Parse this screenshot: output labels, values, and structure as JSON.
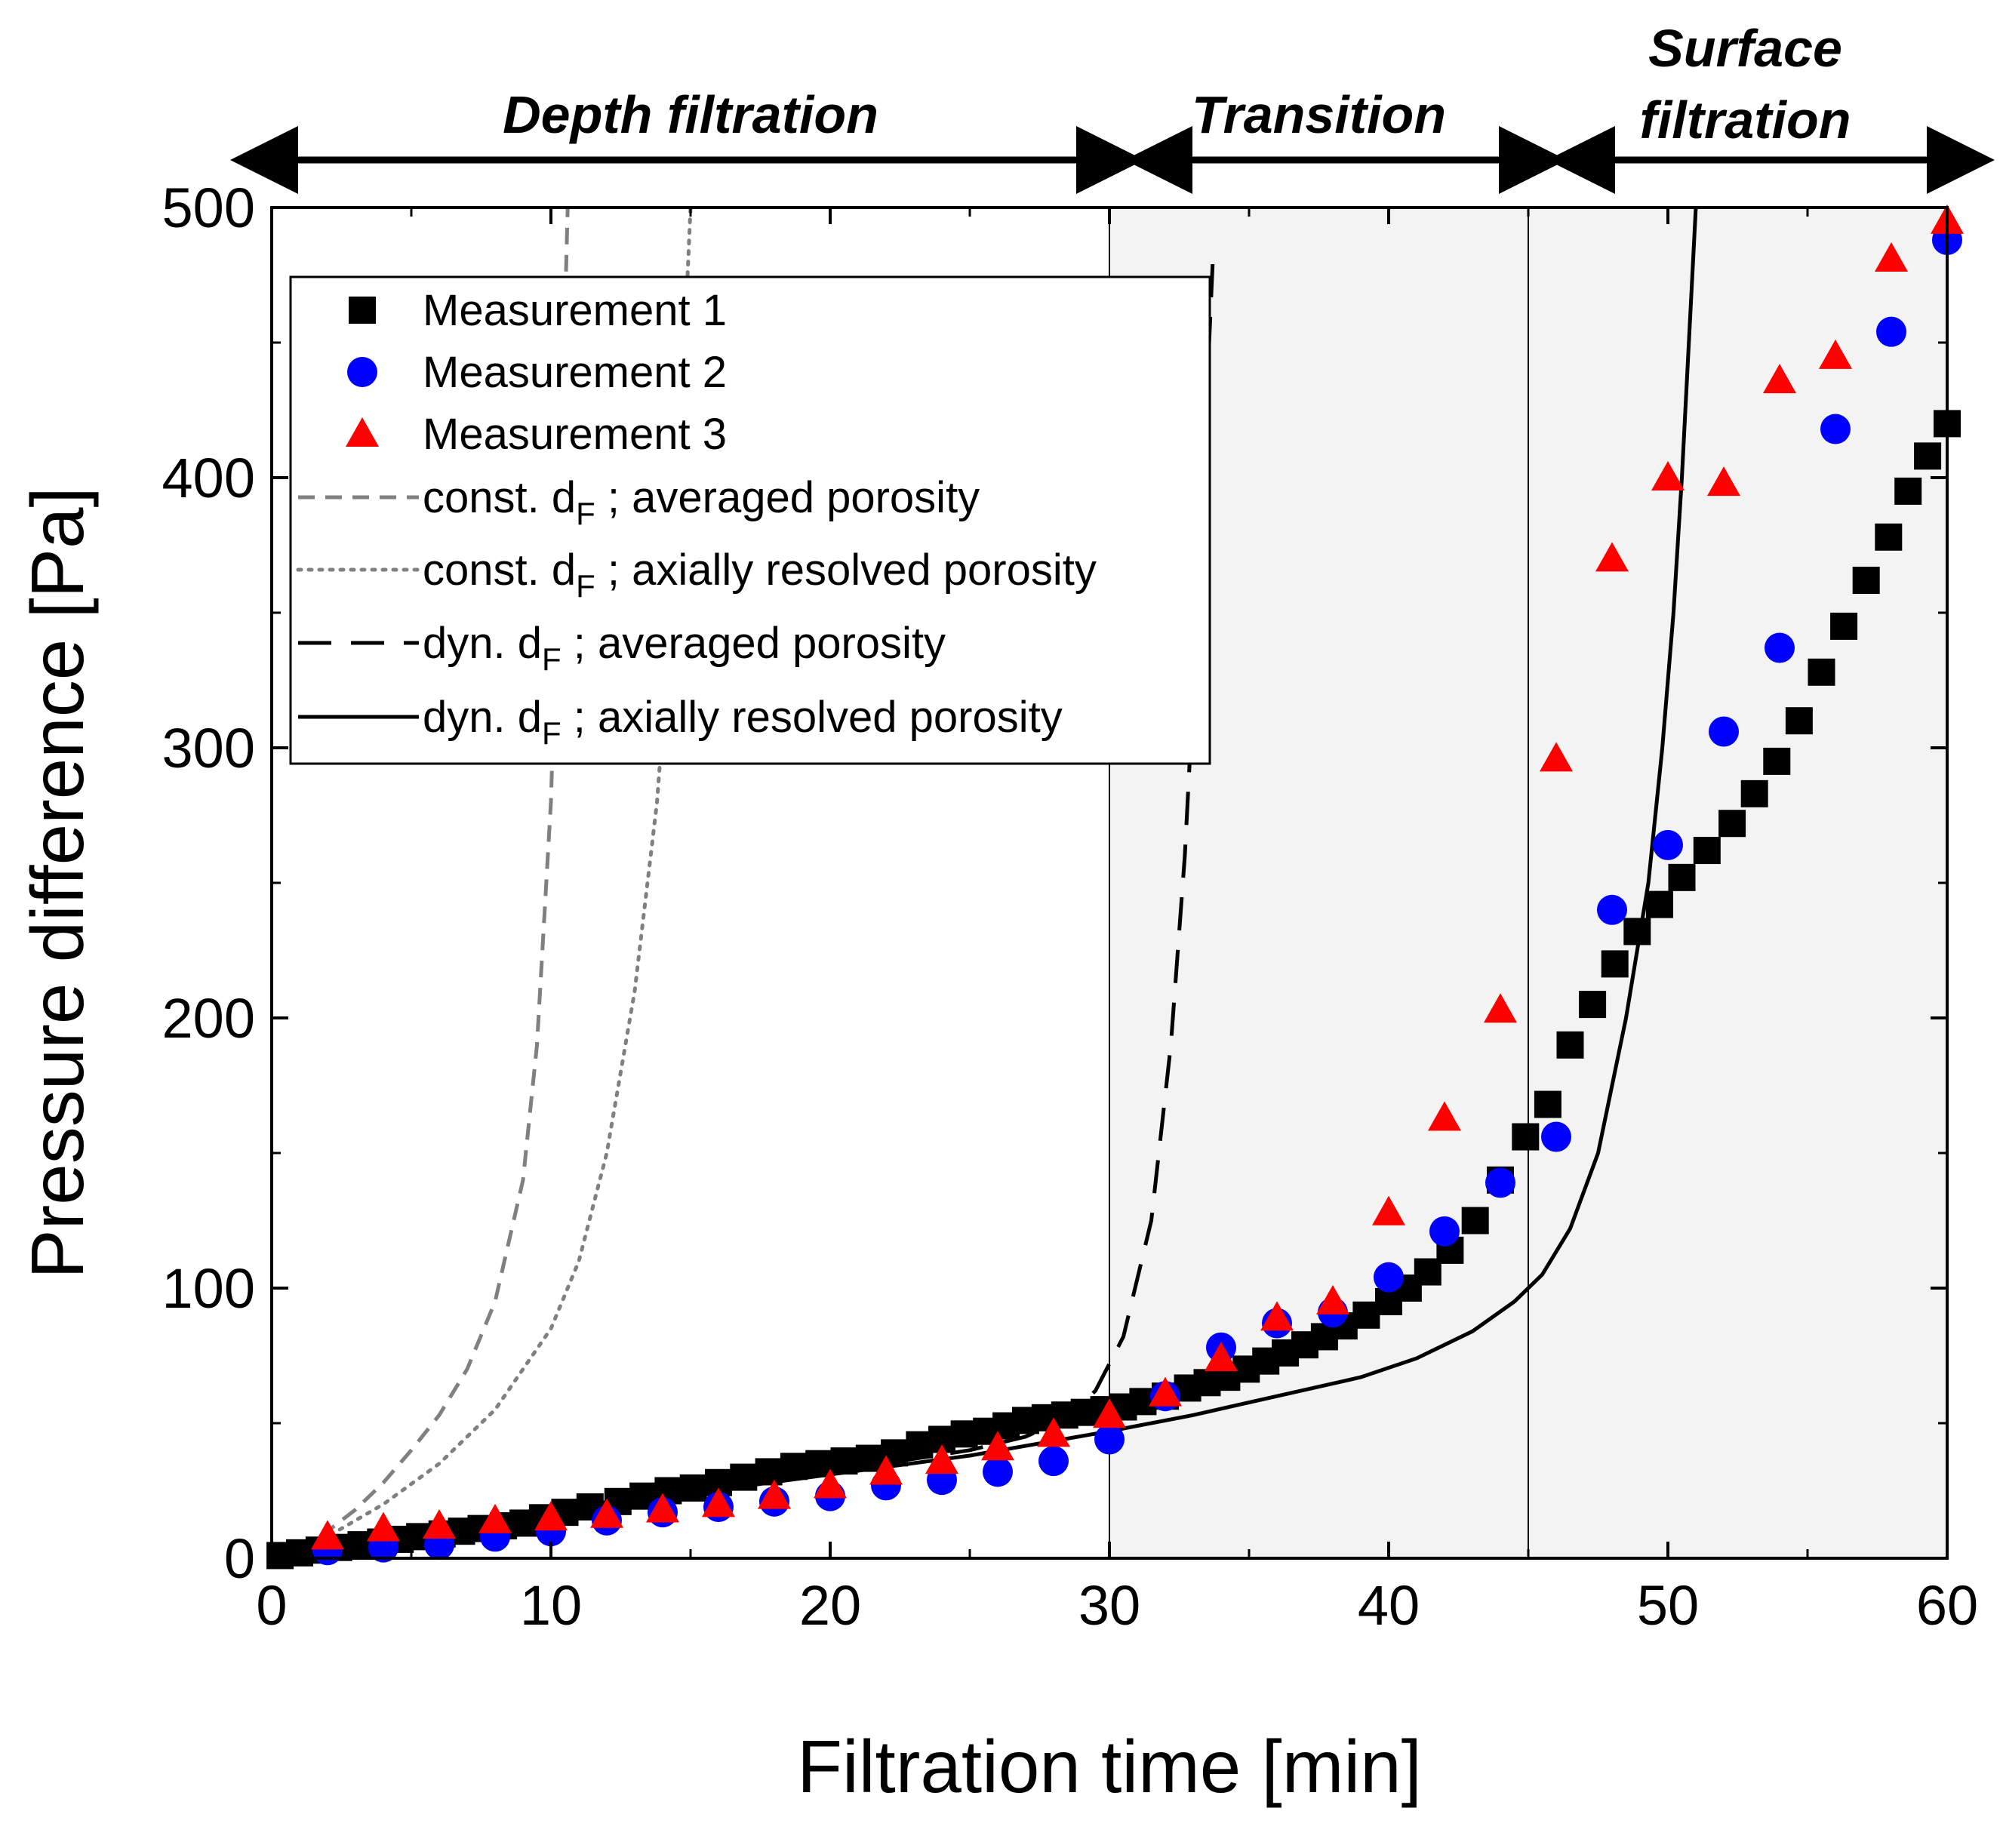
{
  "chart_data": {
    "type": "scatter",
    "title": "",
    "xlabel": "Filtration time [min]",
    "ylabel": "Pressure difference [Pa]",
    "xlim": [
      0,
      60
    ],
    "ylim": [
      0,
      500
    ],
    "xticks": [
      "0",
      "10",
      "20",
      "30",
      "40",
      "50",
      "60"
    ],
    "yticks": [
      "0",
      "100",
      "200",
      "300",
      "400",
      "500"
    ],
    "grid": false,
    "legend_position": "top-left",
    "colors": {
      "measurement1": "#000000",
      "measurement2": "#0000ff",
      "measurement3": "#ff0000",
      "model_gray": "#808080",
      "shade": "#f3f3f3",
      "line": "#000000"
    },
    "regions": [
      {
        "label": "Depth filtration",
        "x_start": 0,
        "x_end": 30,
        "shaded": false
      },
      {
        "label": "Transition",
        "x_start": 30,
        "x_end": 45,
        "shaded": true
      },
      {
        "label": "Surface",
        "label2": "filtration",
        "x_start": 45,
        "x_end": 60,
        "shaded": true
      }
    ],
    "series": [
      {
        "name": "Measurement 1",
        "kind": "markers",
        "marker": "square",
        "color": "#000000",
        "x": [
          0.3,
          1.0,
          1.7,
          2.4,
          3.2,
          3.9,
          4.6,
          5.3,
          6.1,
          6.8,
          7.5,
          8.3,
          9.0,
          9.7,
          10.5,
          11.4,
          12.4,
          13.3,
          14.2,
          15.1,
          16.0,
          16.9,
          17.8,
          18.7,
          19.6,
          20.5,
          21.4,
          22.3,
          23.2,
          24.0,
          24.8,
          25.6,
          26.3,
          27.0,
          27.7,
          28.4,
          29.1,
          29.8,
          30.5,
          31.2,
          32.0,
          32.8,
          33.5,
          34.2,
          34.9,
          35.6,
          36.3,
          37.0,
          37.7,
          38.4,
          39.2,
          40.0,
          40.7,
          41.4,
          42.2,
          43.1,
          44.0,
          44.9,
          45.7,
          46.5,
          47.3,
          48.1,
          48.9,
          49.7,
          50.5,
          51.4,
          52.3,
          53.1,
          53.9,
          54.7,
          55.5,
          56.3,
          57.1,
          57.9,
          58.6,
          59.3,
          60.0
        ],
        "y": [
          1,
          2,
          3,
          4,
          5,
          6,
          7,
          8,
          9,
          10,
          11,
          12,
          13,
          15,
          17,
          19,
          21,
          23,
          25,
          26,
          28,
          30,
          32,
          34,
          35,
          36,
          37,
          39,
          42,
          44,
          46,
          47,
          49,
          51,
          52,
          53,
          54,
          55,
          56,
          58,
          60,
          63,
          65,
          67,
          70,
          73,
          76,
          79,
          82,
          86,
          90,
          95,
          100,
          106,
          114,
          125,
          140,
          156,
          168,
          190,
          205,
          220,
          232,
          242,
          252,
          262,
          272,
          283,
          295,
          310,
          328,
          345,
          362,
          378,
          395,
          408,
          420
        ]
      },
      {
        "name": "Measurement 2",
        "kind": "markers",
        "marker": "circle",
        "color": "#0000ff",
        "x": [
          2,
          4,
          6,
          8,
          10,
          12,
          14,
          16,
          18,
          20,
          22,
          24,
          26,
          28,
          30,
          32,
          34,
          36,
          38,
          40,
          42,
          44,
          46,
          48,
          50,
          52,
          54,
          56,
          58,
          60
        ],
        "y": [
          3,
          4,
          5,
          8,
          10,
          14,
          17,
          19,
          21,
          23,
          27,
          29,
          32,
          36,
          44,
          60,
          78,
          87,
          91,
          104,
          121,
          139,
          156,
          240,
          264,
          306,
          337,
          418,
          454,
          488
        ]
      },
      {
        "name": "Measurement 3",
        "kind": "markers",
        "marker": "triangle",
        "color": "#ff0000",
        "x": [
          2,
          4,
          6,
          8,
          10,
          12,
          14,
          16,
          18,
          20,
          22,
          24,
          26,
          28,
          30,
          32,
          34,
          36,
          38,
          40,
          42,
          44,
          46,
          48,
          50,
          52,
          54,
          56,
          58,
          60
        ],
        "y": [
          8,
          11,
          12,
          14,
          15,
          16,
          18,
          20,
          23,
          27,
          32,
          36,
          41,
          46,
          53,
          61,
          74,
          89,
          95,
          128,
          163,
          203,
          296,
          370,
          400,
          398,
          436,
          445,
          481,
          495
        ]
      },
      {
        "name": "const. d_F ; averaged porosity",
        "kind": "line",
        "dash": "dashed",
        "color": "#808080",
        "x": [
          0,
          1,
          2,
          3,
          4,
          5,
          6,
          7,
          8,
          9,
          9.5,
          10.0,
          10.3,
          10.6
        ],
        "y": [
          0,
          4,
          10,
          18,
          28,
          40,
          53,
          70,
          95,
          140,
          190,
          280,
          380,
          500
        ]
      },
      {
        "name": "const. d_F ; axially resolved porosity",
        "kind": "line",
        "dash": "dotted",
        "color": "#808080",
        "x": [
          0,
          2,
          4,
          6,
          8,
          10,
          11,
          12,
          13,
          13.8,
          14.3,
          14.7,
          15.0
        ],
        "y": [
          0,
          8,
          20,
          35,
          55,
          85,
          110,
          150,
          210,
          280,
          350,
          430,
          500
        ]
      },
      {
        "name": "dyn. d_F ; averaged porosity",
        "kind": "line",
        "dash": "longdash",
        "color": "#000000",
        "x": [
          0,
          5,
          10,
          15,
          20,
          25,
          27,
          28.5,
          29.5,
          30.5,
          31.5,
          32.2,
          32.7,
          33.1,
          33.4,
          33.7
        ],
        "y": [
          0,
          9,
          18,
          25,
          32,
          40,
          45,
          52,
          62,
          82,
          125,
          190,
          260,
          340,
          410,
          480
        ]
      },
      {
        "name": "dyn. d_F ; axially resolved porosity",
        "kind": "line",
        "dash": "solid",
        "color": "#000000",
        "x": [
          0,
          5,
          10,
          15,
          20,
          25,
          30,
          33,
          36,
          39,
          41,
          43,
          44.5,
          45.5,
          46.5,
          47.5,
          48.5,
          49.3,
          49.8,
          50.2,
          50.5,
          50.8,
          51.0
        ],
        "y": [
          0,
          9,
          17,
          24,
          31,
          38,
          47,
          53,
          60,
          67,
          74,
          84,
          95,
          105,
          122,
          150,
          200,
          250,
          300,
          350,
          400,
          460,
          500
        ]
      }
    ]
  },
  "legend": {
    "items": [
      {
        "label": "Measurement 1",
        "sym": "square"
      },
      {
        "label": "Measurement 2",
        "sym": "circle"
      },
      {
        "label": "Measurement 3",
        "sym": "triangle"
      },
      {
        "pre": "const. d",
        "sub": "F",
        "post": " ; averaged porosity",
        "sym": "dashed-gray"
      },
      {
        "pre": "const. d",
        "sub": "F",
        "post": " ; axially resolved porosity",
        "sym": "dotted-gray"
      },
      {
        "pre": "dyn. d",
        "sub": "F",
        "post": " ; averaged porosity",
        "sym": "longdash-black"
      },
      {
        "pre": "dyn. d",
        "sub": "F",
        "post": " ; axially resolved porosity",
        "sym": "solid-black"
      }
    ]
  }
}
